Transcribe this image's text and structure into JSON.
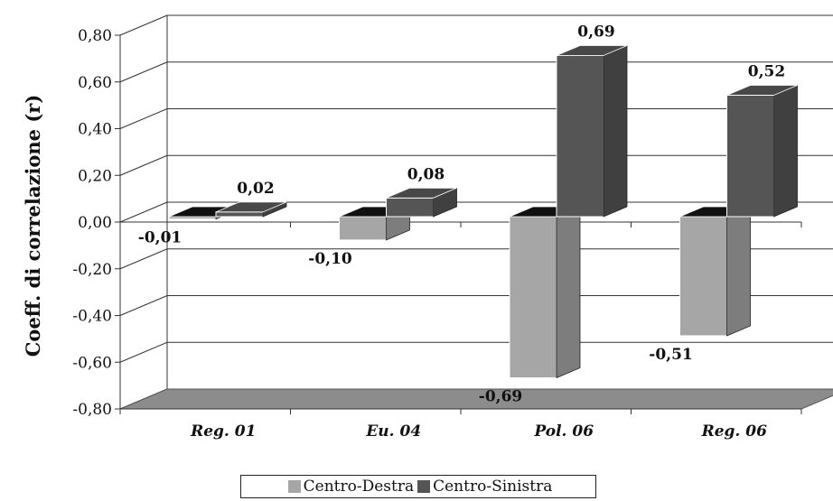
{
  "chart_data": {
    "type": "bar",
    "title": "",
    "xlabel": "",
    "ylabel": "Coeff. di correlazione (r)",
    "ylim": [
      -0.8,
      0.8
    ],
    "yticks": [
      "0,80",
      "0,60",
      "0,40",
      "0,20",
      "0,00",
      "-0,20",
      "-0,40",
      "-0,60",
      "-0,80"
    ],
    "categories": [
      "Reg. 01",
      "Eu. 04",
      "Pol. 06",
      "Reg. 06"
    ],
    "series": [
      {
        "name": "Centro-Destra",
        "color": "#a6a6a6",
        "values": [
          -0.01,
          -0.1,
          -0.69,
          -0.51
        ],
        "labels": [
          "-0,01",
          "-0,10",
          "-0,69",
          "-0,51"
        ]
      },
      {
        "name": "Centro-Sinistra",
        "color": "#555555",
        "values": [
          0.02,
          0.08,
          0.69,
          0.52
        ],
        "labels": [
          "0,02",
          "0,08",
          "0,69",
          "0,52"
        ]
      }
    ],
    "grid": true,
    "legend_position": "bottom"
  }
}
